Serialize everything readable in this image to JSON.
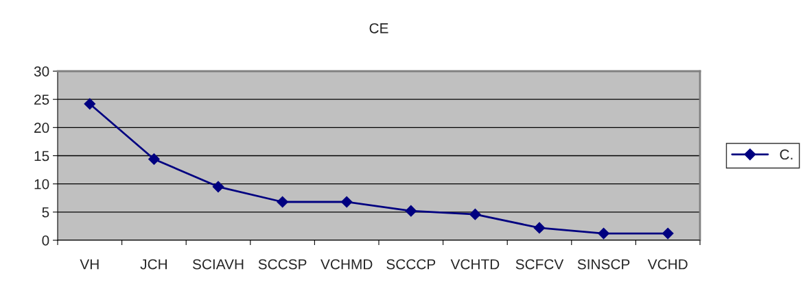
{
  "chart_data": {
    "type": "line",
    "title": "CE",
    "categories": [
      "VH",
      "JCH",
      "SCIAVH",
      "SCCSP",
      "VCHMD",
      "SCCCP",
      "VCHTD",
      "SCFCV",
      "SINSCP",
      "VCHD"
    ],
    "series": [
      {
        "name": "C.",
        "color": "#000080",
        "values": [
          24.2,
          14.4,
          9.5,
          6.8,
          6.8,
          5.2,
          4.6,
          2.2,
          1.2,
          1.2
        ]
      }
    ],
    "ylim": [
      0,
      30
    ],
    "yticks": [
      0,
      5,
      10,
      15,
      20,
      25,
      30
    ],
    "grid": "y",
    "legend": "right",
    "marker": "diamond",
    "line_style": "solid"
  }
}
